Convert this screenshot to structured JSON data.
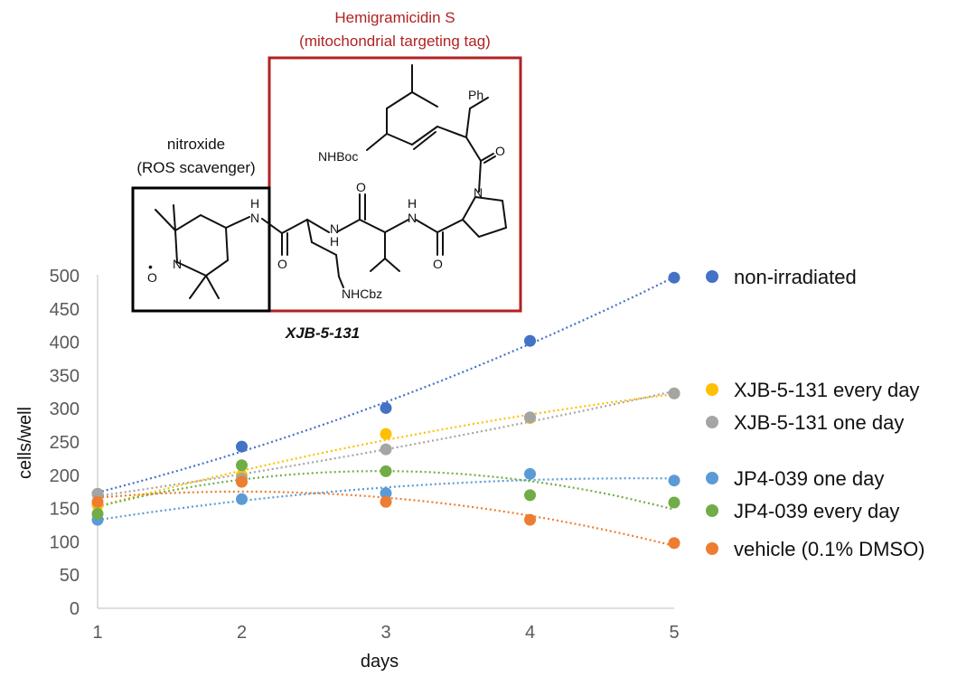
{
  "chart_data": {
    "type": "scatter",
    "xlabel": "days",
    "ylabel": "cells/well",
    "xlim": [
      1,
      5
    ],
    "ylim": [
      0,
      500
    ],
    "xticks": [
      "1",
      "2",
      "3",
      "4",
      "5"
    ],
    "yticks": [
      "0",
      "50",
      "100",
      "150",
      "200",
      "250",
      "300",
      "350",
      "400",
      "450",
      "500"
    ],
    "trendlines": "dotted polynomial",
    "grid": false,
    "legend_position": "right",
    "x": [
      1,
      2,
      3,
      4,
      5
    ],
    "series": [
      {
        "name": "non-irradiated",
        "color": "#4472C4",
        "values": [
          172,
          243,
          301,
          402,
          497
        ]
      },
      {
        "name": "XJB-5-131 every day",
        "color": "#FFC000",
        "values": [
          155,
          200,
          262,
          286,
          323
        ]
      },
      {
        "name": "XJB-5-131 one day",
        "color": "#A5A5A5",
        "values": [
          172,
          195,
          239,
          287,
          323
        ]
      },
      {
        "name": "JP4-039 one day",
        "color": "#5B9BD5",
        "values": [
          133,
          164,
          173,
          202,
          192
        ]
      },
      {
        "name": "JP4-039 every day",
        "color": "#70AD47",
        "values": [
          142,
          215,
          206,
          170,
          159
        ]
      },
      {
        "name": "vehicle (0.1% DMSO)",
        "color": "#ED7D31",
        "values": [
          160,
          190,
          160,
          133,
          98
        ]
      }
    ]
  },
  "annotations": {
    "hemigramicidin_line1": "Hemigramicidin S",
    "hemigramicidin_line2": "(mitochondrial targeting tag)",
    "nitroxide_line1": "nitroxide",
    "nitroxide_line2": "(ROS scavenger)",
    "compound_name": "XJB-5-131",
    "hemigramicidin_color": "#B22222",
    "nitroxide_box_color": "#000000"
  },
  "structure_labels": {
    "ph": "Ph",
    "nhboc": "NHBoc",
    "o_ketone": "O",
    "n_ring": "N",
    "o_val": "O",
    "nh_val": "N",
    "h_val": "H",
    "nh_orn": "N",
    "h_orn": "H",
    "o_orn": "O",
    "nhcbz": "NHCbz",
    "o_pro": "O",
    "n_amide": "N",
    "h_amide": "H",
    "n_pip": "N",
    "o_pip": "O",
    "o_dot": "•"
  }
}
